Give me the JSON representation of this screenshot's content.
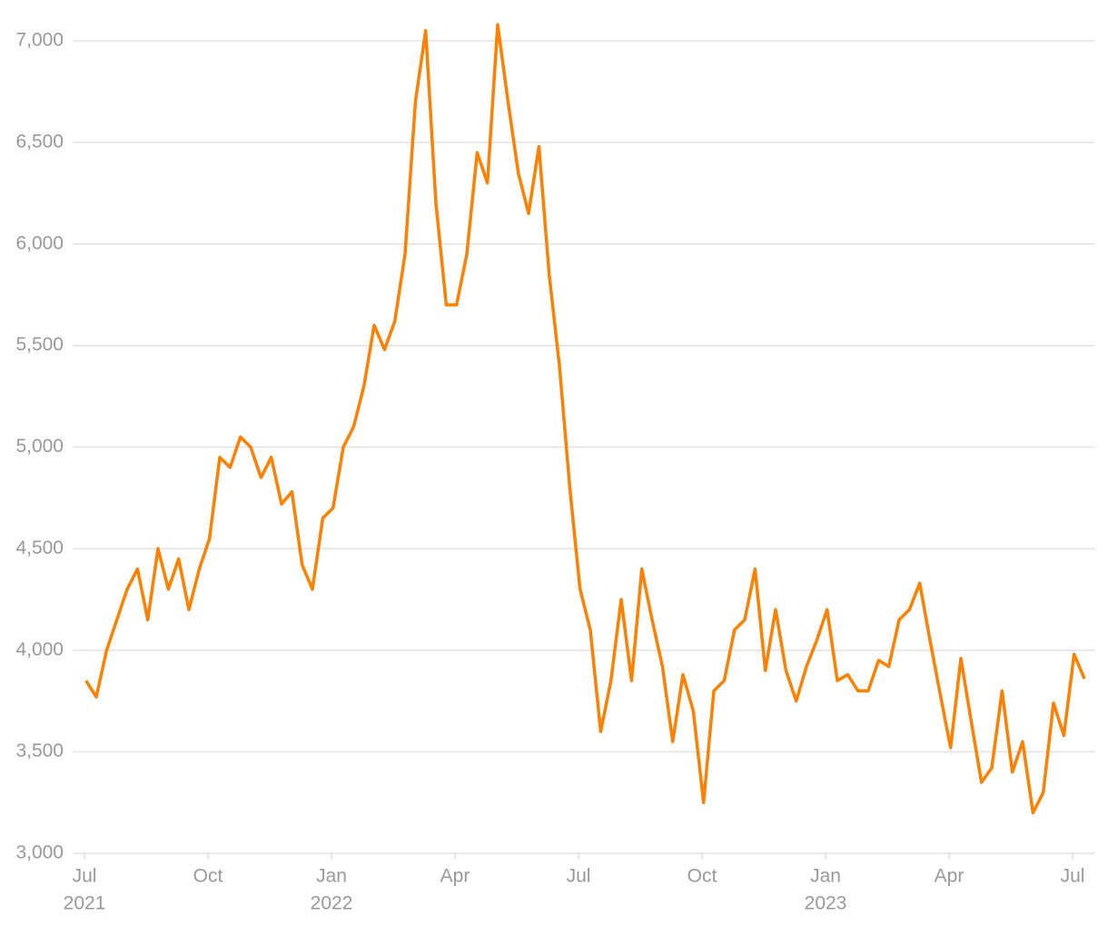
{
  "chart_data": {
    "type": "line",
    "x": [
      "2021-07",
      "2021-07",
      "2021-07",
      "2021-07",
      "2021-08",
      "2021-08",
      "2021-08",
      "2021-08",
      "2021-09",
      "2021-09",
      "2021-09",
      "2021-09",
      "2021-10",
      "2021-10",
      "2021-10",
      "2021-10",
      "2021-11",
      "2021-11",
      "2021-11",
      "2021-11",
      "2021-12",
      "2021-12",
      "2021-12",
      "2021-12",
      "2022-01",
      "2022-01",
      "2022-01",
      "2022-01",
      "2022-02",
      "2022-02",
      "2022-02",
      "2022-02",
      "2022-03",
      "2022-03",
      "2022-03",
      "2022-03",
      "2022-04",
      "2022-04",
      "2022-04",
      "2022-04",
      "2022-05",
      "2022-05",
      "2022-05",
      "2022-05",
      "2022-06",
      "2022-06",
      "2022-06",
      "2022-06",
      "2022-07",
      "2022-07",
      "2022-07",
      "2022-07",
      "2022-08",
      "2022-08",
      "2022-08",
      "2022-08",
      "2022-09",
      "2022-09",
      "2022-09",
      "2022-09",
      "2022-10",
      "2022-10",
      "2022-10",
      "2022-10",
      "2022-11",
      "2022-11",
      "2022-11",
      "2022-11",
      "2022-12",
      "2022-12",
      "2022-12",
      "2022-12",
      "2023-01",
      "2023-01",
      "2023-01",
      "2023-01",
      "2023-02",
      "2023-02",
      "2023-02",
      "2023-02",
      "2023-03",
      "2023-03",
      "2023-03",
      "2023-03",
      "2023-04",
      "2023-04",
      "2023-04",
      "2023-04",
      "2023-05",
      "2023-05",
      "2023-05",
      "2023-05",
      "2023-06",
      "2023-06",
      "2023-06",
      "2023-06",
      "2023-07",
      "2023-07"
    ],
    "series": [
      {
        "color": "#ff8000",
        "values": [
          3850,
          3770,
          4000,
          4150,
          4300,
          4400,
          4150,
          4500,
          4300,
          4450,
          4200,
          4400,
          4550,
          4950,
          4900,
          5050,
          5000,
          4850,
          4950,
          4720,
          4780,
          4420,
          4300,
          4650,
          4700,
          5000,
          5100,
          5300,
          5600,
          5480,
          5620,
          5950,
          6700,
          7050,
          6200,
          5700,
          5700,
          5950,
          6450,
          6300,
          7080,
          6700,
          6350,
          6150,
          6480,
          5850,
          5400,
          4800,
          4300,
          4100,
          3600,
          3850,
          4250,
          3850,
          4400,
          4150,
          3920,
          3550,
          3880,
          3700,
          3250,
          3800,
          3850,
          4100,
          4150,
          4400,
          3900,
          4200,
          3900,
          3750,
          3920,
          4050,
          4200,
          3850,
          3880,
          3800,
          3800,
          3950,
          3920,
          4150,
          4200,
          4330,
          4050,
          3780,
          3520,
          3960,
          3650,
          3350,
          3420,
          3800,
          3400,
          3550,
          3200,
          3300,
          3740,
          3580,
          3980,
          3860
        ]
      }
    ],
    "xlim": [
      "2021-07",
      "2023-07"
    ],
    "xticks": [
      {
        "value": "2021-07",
        "label": [
          "Jul",
          "2021"
        ]
      },
      {
        "value": "2021-10",
        "label": [
          "Oct"
        ]
      },
      {
        "value": "2022-01",
        "label": [
          "Jan",
          "2022"
        ]
      },
      {
        "value": "2022-04",
        "label": [
          "Apr"
        ]
      },
      {
        "value": "2022-07",
        "label": [
          "Jul"
        ]
      },
      {
        "value": "2022-10",
        "label": [
          "Oct"
        ]
      },
      {
        "value": "2023-01",
        "label": [
          "Jan",
          "2023"
        ]
      },
      {
        "value": "2023-04",
        "label": [
          "Apr"
        ]
      },
      {
        "value": "2023-07",
        "label": [
          "Jul"
        ]
      }
    ],
    "ylim": [
      3000,
      7000
    ],
    "yticks": [
      {
        "value": 3000,
        "label": "3,000"
      },
      {
        "value": 3500,
        "label": "3,500"
      },
      {
        "value": 4000,
        "label": "4,000"
      },
      {
        "value": 4500,
        "label": "4,500"
      },
      {
        "value": 5000,
        "label": "5,000"
      },
      {
        "value": 5500,
        "label": "5,500"
      },
      {
        "value": 6000,
        "label": "6,000"
      },
      {
        "value": 6500,
        "label": "6,500"
      },
      {
        "value": 7000,
        "label": "7,000"
      }
    ],
    "grid": true
  }
}
